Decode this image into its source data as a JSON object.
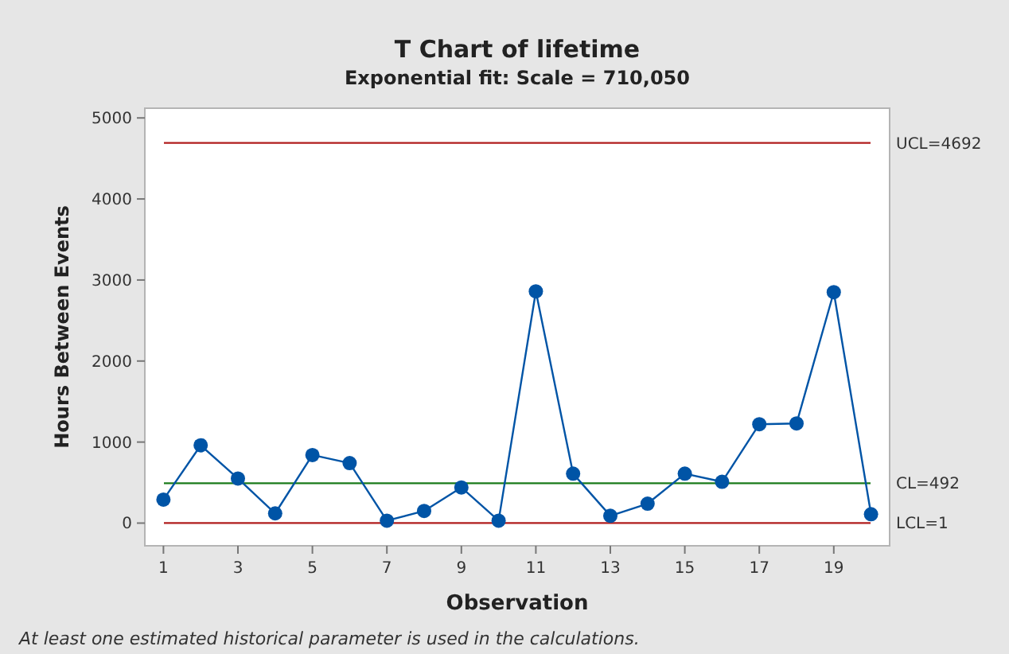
{
  "chart_data": {
    "type": "line",
    "title": "T Chart of lifetime",
    "subtitle": "Exponential fit: Scale = 710,050",
    "xlabel": "Observation",
    "ylabel": "Hours Between Events",
    "x": [
      1,
      2,
      3,
      4,
      5,
      6,
      7,
      8,
      9,
      10,
      11,
      12,
      13,
      14,
      15,
      16,
      17,
      18,
      19,
      20
    ],
    "series": [
      {
        "color": "#0054a6",
        "values": [
          290,
          960,
          550,
          120,
          840,
          740,
          30,
          150,
          440,
          30,
          2860,
          610,
          90,
          240,
          610,
          510,
          1220,
          1230,
          2850,
          110
        ]
      }
    ],
    "xlim": [
      0.5,
      20.5
    ],
    "xticks": [
      1,
      3,
      5,
      7,
      9,
      11,
      13,
      15,
      17,
      19
    ],
    "ylim": [
      -280,
      5120
    ],
    "yticks": [
      0,
      1000,
      2000,
      3000,
      4000,
      5000
    ],
    "ref_lines": [
      {
        "axis": "y",
        "value": 4692,
        "label": "UCL=4692",
        "color": "#b01c1c"
      },
      {
        "axis": "y",
        "value": 492,
        "label": "CL=492",
        "color": "#1a7a1a"
      },
      {
        "axis": "y",
        "value": 1,
        "label": "LCL=1",
        "color": "#b01c1c"
      }
    ],
    "annotations": [
      "At least one estimated historical parameter is used in the calculations."
    ],
    "marker": "circle",
    "grid": false
  }
}
